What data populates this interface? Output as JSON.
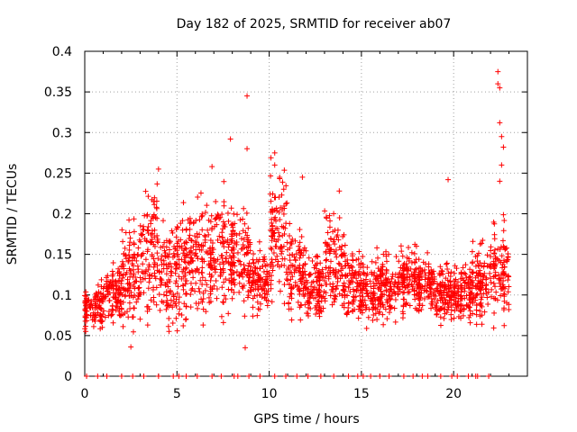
{
  "chart_data": {
    "type": "scatter",
    "title": "Day 182 of 2025, SRMTID for receiver ab07",
    "xlabel": "GPS time / hours",
    "ylabel": "SRMTID / TECUs",
    "xlim": [
      0,
      24
    ],
    "ylim": [
      0,
      0.4
    ],
    "xticks": [
      {
        "value": 0,
        "label": "0"
      },
      {
        "value": 5,
        "label": "5"
      },
      {
        "value": 10,
        "label": "10"
      },
      {
        "value": 15,
        "label": "15"
      },
      {
        "value": 20,
        "label": "20"
      }
    ],
    "yticks": [
      {
        "value": 0,
        "label": "0"
      },
      {
        "value": 0.05,
        "label": "0.05"
      },
      {
        "value": 0.1,
        "label": "0.1"
      },
      {
        "value": 0.15,
        "label": "0.15"
      },
      {
        "value": 0.2,
        "label": "0.2"
      },
      {
        "value": 0.25,
        "label": "0.25"
      },
      {
        "value": 0.3,
        "label": "0.3"
      },
      {
        "value": 0.35,
        "label": "0.35"
      },
      {
        "value": 0.4,
        "label": "0.4"
      }
    ],
    "grid": true,
    "marker": "+",
    "color": "#ff0000",
    "series": [
      {
        "name": "SRMTID",
        "envelope_note": "dense scatter; representative points",
        "bands": [
          {
            "t0": 0.0,
            "t1": 1.0,
            "lo": 0.05,
            "hi": 0.12
          },
          {
            "t0": 1.0,
            "t1": 2.0,
            "lo": 0.06,
            "hi": 0.14
          },
          {
            "t0": 2.0,
            "t1": 3.0,
            "lo": 0.04,
            "hi": 0.2
          },
          {
            "t0": 3.0,
            "t1": 4.0,
            "lo": 0.06,
            "hi": 0.25
          },
          {
            "t0": 4.0,
            "t1": 5.0,
            "lo": 0.05,
            "hi": 0.21
          },
          {
            "t0": 5.0,
            "t1": 6.0,
            "lo": 0.05,
            "hi": 0.23
          },
          {
            "t0": 6.0,
            "t1": 7.0,
            "lo": 0.04,
            "hi": 0.25
          },
          {
            "t0": 7.0,
            "t1": 8.0,
            "lo": 0.06,
            "hi": 0.24
          },
          {
            "t0": 8.0,
            "t1": 9.0,
            "lo": 0.06,
            "hi": 0.22
          },
          {
            "t0": 9.0,
            "t1": 10.0,
            "lo": 0.07,
            "hi": 0.17
          },
          {
            "t0": 10.0,
            "t1": 11.0,
            "lo": 0.08,
            "hi": 0.27
          },
          {
            "t0": 11.0,
            "t1": 12.0,
            "lo": 0.06,
            "hi": 0.2
          },
          {
            "t0": 12.0,
            "t1": 13.0,
            "lo": 0.06,
            "hi": 0.16
          },
          {
            "t0": 13.0,
            "t1": 14.0,
            "lo": 0.06,
            "hi": 0.23
          },
          {
            "t0": 14.0,
            "t1": 15.0,
            "lo": 0.05,
            "hi": 0.18
          },
          {
            "t0": 15.0,
            "t1": 16.0,
            "lo": 0.05,
            "hi": 0.16
          },
          {
            "t0": 16.0,
            "t1": 17.0,
            "lo": 0.06,
            "hi": 0.16
          },
          {
            "t0": 17.0,
            "t1": 18.0,
            "lo": 0.07,
            "hi": 0.17
          },
          {
            "t0": 18.0,
            "t1": 19.0,
            "lo": 0.07,
            "hi": 0.16
          },
          {
            "t0": 19.0,
            "t1": 20.0,
            "lo": 0.06,
            "hi": 0.15
          },
          {
            "t0": 20.0,
            "t1": 21.0,
            "lo": 0.06,
            "hi": 0.15
          },
          {
            "t0": 21.0,
            "t1": 22.0,
            "lo": 0.05,
            "hi": 0.18
          },
          {
            "t0": 22.0,
            "t1": 23.0,
            "lo": 0.05,
            "hi": 0.2
          }
        ],
        "outliers": [
          {
            "x": 8.8,
            "y": 0.345
          },
          {
            "x": 8.8,
            "y": 0.28
          },
          {
            "x": 7.9,
            "y": 0.292
          },
          {
            "x": 10.3,
            "y": 0.275
          },
          {
            "x": 10.3,
            "y": 0.26
          },
          {
            "x": 4.0,
            "y": 0.255
          },
          {
            "x": 6.9,
            "y": 0.258
          },
          {
            "x": 19.7,
            "y": 0.242
          },
          {
            "x": 22.4,
            "y": 0.375
          },
          {
            "x": 22.4,
            "y": 0.36
          },
          {
            "x": 22.5,
            "y": 0.355
          },
          {
            "x": 22.5,
            "y": 0.312
          },
          {
            "x": 22.6,
            "y": 0.295
          },
          {
            "x": 22.7,
            "y": 0.282
          },
          {
            "x": 22.6,
            "y": 0.26
          },
          {
            "x": 22.5,
            "y": 0.24
          },
          {
            "x": 8.7,
            "y": 0.035
          },
          {
            "x": 2.5,
            "y": 0.036
          },
          {
            "x": 11.8,
            "y": 0.245
          },
          {
            "x": 13.8,
            "y": 0.228
          }
        ],
        "zero_points_x": [
          0.1,
          0.7,
          1.2,
          2.0,
          2.6,
          3.2,
          4.0,
          4.8,
          5.1,
          5.5,
          6.1,
          6.9,
          7.4,
          8.1,
          8.3,
          8.9,
          9.5,
          10.3,
          10.9,
          11.5,
          12.1,
          12.8,
          13.5,
          14.3,
          14.8,
          15.1,
          15.5,
          16.0,
          16.5,
          17.3,
          17.8,
          18.3,
          18.6,
          19.3,
          19.9,
          20.2,
          20.8,
          21.2,
          21.3,
          21.9
        ]
      }
    ]
  }
}
